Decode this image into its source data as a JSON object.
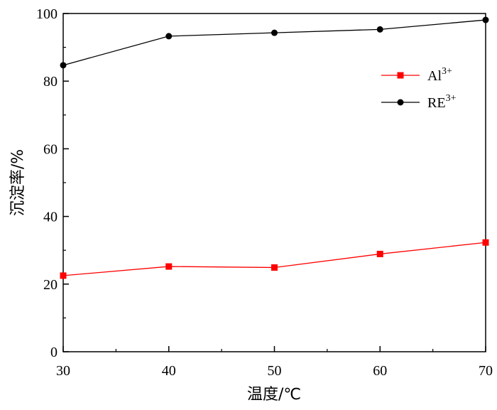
{
  "chart_data": {
    "type": "line",
    "title": "",
    "xlabel": "温度/℃",
    "ylabel": "沉淀率/%",
    "x": [
      30,
      40,
      50,
      60,
      70
    ],
    "xlim": [
      30,
      70
    ],
    "ylim": [
      0,
      100
    ],
    "xticks": [
      "30",
      "40",
      "50",
      "60",
      "70"
    ],
    "yticks": [
      "0",
      "20",
      "40",
      "60",
      "80",
      "100"
    ],
    "grid": false,
    "legend_position": "upper-right",
    "series": [
      {
        "name": "Al",
        "name_sup": "3+",
        "values": [
          22.5,
          25.2,
          24.9,
          28.9,
          32.3
        ],
        "color": "#ff0000",
        "marker": "square"
      },
      {
        "name": "RE",
        "name_sup": "3+",
        "values": [
          84.7,
          93.3,
          94.3,
          95.3,
          98.1
        ],
        "color": "#000000",
        "marker": "circle"
      }
    ]
  }
}
